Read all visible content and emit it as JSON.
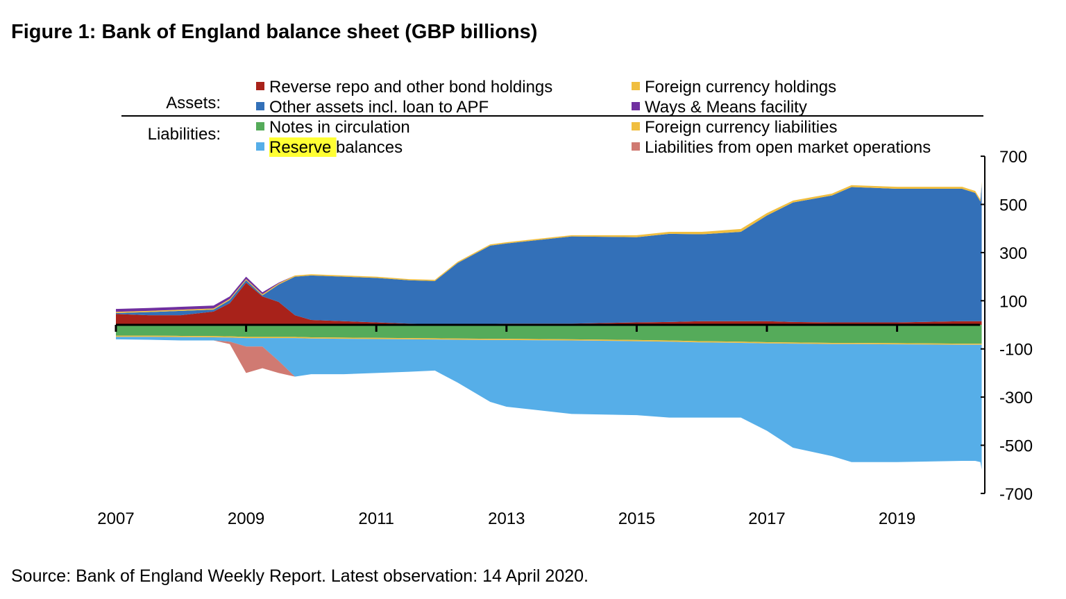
{
  "title": "Figure 1: Bank of England balance sheet (GBP billions)",
  "source": "Source: Bank of England Weekly Report. Latest observation: 14 April 2020.",
  "legend": {
    "assets_label": "Assets:",
    "liabilities_label": "Liabilities:",
    "highlight_color": "#ffff33"
  },
  "chart_data": {
    "type": "area",
    "stacked": true,
    "title": "Figure 1: Bank of England balance sheet (GBP billions)",
    "xlabel": "",
    "ylabel": "",
    "xlim": [
      2007,
      2020.3
    ],
    "ylim": [
      -700,
      700
    ],
    "x_ticks": [
      "2007",
      "2009",
      "2011",
      "2013",
      "2015",
      "2017",
      "2019"
    ],
    "y_ticks": [
      "700",
      "500",
      "300",
      "100",
      "-100",
      "-300",
      "-500",
      "-700"
    ],
    "y_axis_position": "right",
    "grid": false,
    "legend_position": "top",
    "x": [
      2007.0,
      2007.5,
      2008.0,
      2008.5,
      2008.75,
      2009.0,
      2009.25,
      2009.5,
      2009.75,
      2010.0,
      2010.5,
      2011.0,
      2011.5,
      2011.9,
      2012.25,
      2012.75,
      2013.0,
      2014.0,
      2015.0,
      2015.5,
      2016.0,
      2016.6,
      2017.0,
      2017.4,
      2018.0,
      2018.3,
      2019.0,
      2020.0,
      2020.2,
      2020.28,
      2020.3
    ],
    "assets": [
      {
        "name": "Reverse repo and other bond holdings",
        "color": "#a8221a",
        "values": [
          45,
          40,
          40,
          55,
          90,
          175,
          118,
          95,
          40,
          20,
          15,
          10,
          5,
          3,
          3,
          4,
          5,
          5,
          10,
          12,
          15,
          15,
          15,
          12,
          10,
          10,
          10,
          15,
          15,
          15,
          15
        ]
      },
      {
        "name": "Other assets incl. loan to APF",
        "color": "#3370b8",
        "values": [
          4,
          13,
          18,
          8,
          13,
          10,
          4,
          72,
          160,
          185,
          185,
          185,
          180,
          179,
          254,
          325,
          333,
          362,
          354,
          366,
          361,
          371,
          439,
          496,
          527,
          562,
          555,
          550,
          533,
          497,
          571
        ]
      },
      {
        "name": "Foreign currency holdings",
        "color": "#f0be40",
        "values": [
          5,
          5,
          5,
          5,
          5,
          5,
          5,
          5,
          5,
          5,
          5,
          5,
          5,
          5,
          5,
          5,
          5,
          5,
          8,
          8,
          10,
          12,
          10,
          8,
          8,
          8,
          8,
          8,
          8,
          8,
          8
        ]
      },
      {
        "name": "Ways & Means facility",
        "color": "#7030a0",
        "values": [
          12,
          12,
          12,
          12,
          10,
          10,
          8,
          3,
          0,
          0,
          0,
          0,
          0,
          0,
          0,
          0,
          0,
          0,
          0,
          0,
          0,
          0,
          0,
          0,
          0,
          0,
          0,
          0,
          0,
          0,
          0
        ]
      }
    ],
    "liabilities": [
      {
        "name": "Notes in circulation",
        "color": "#55ab5a",
        "values": [
          -45,
          -45,
          -46,
          -47,
          -48,
          -50,
          -50,
          -50,
          -50,
          -52,
          -53,
          -54,
          -55,
          -56,
          -57,
          -58,
          -58,
          -60,
          -63,
          -65,
          -68,
          -70,
          -72,
          -73,
          -75,
          -75,
          -76,
          -78,
          -78,
          -78,
          -78
        ]
      },
      {
        "name": "Foreign currency liabilities",
        "color": "#f0be40",
        "values": [
          -5,
          -5,
          -5,
          -5,
          -5,
          -5,
          -5,
          -5,
          -5,
          -5,
          -5,
          -5,
          -5,
          -5,
          -5,
          -5,
          -5,
          -5,
          -5,
          -5,
          -5,
          -5,
          -5,
          -5,
          -5,
          -5,
          -5,
          -5,
          -5,
          -5,
          -5
        ]
      },
      {
        "name": "Reserve balances",
        "color": "#56aee8",
        "highlight": "Reserve",
        "values": [
          -10,
          -12,
          -14,
          -13,
          -17,
          -35,
          -35,
          -95,
          -160,
          -148,
          -147,
          -141,
          -135,
          -129,
          -178,
          -257,
          -277,
          -305,
          -307,
          -315,
          -312,
          -310,
          -363,
          -432,
          -465,
          -490,
          -489,
          -482,
          -482,
          -487,
          -517
        ]
      },
      {
        "name": "Liabilities from open market operations",
        "color": "#d07a72",
        "values": [
          0,
          0,
          0,
          0,
          -10,
          -110,
          -90,
          -50,
          0,
          0,
          0,
          0,
          0,
          0,
          0,
          0,
          0,
          0,
          0,
          0,
          0,
          0,
          0,
          0,
          0,
          0,
          0,
          0,
          0,
          0,
          0
        ]
      }
    ]
  }
}
